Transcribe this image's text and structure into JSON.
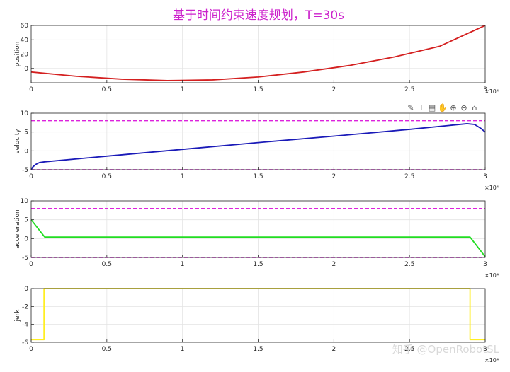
{
  "figure": {
    "title": "基于时间约束速度规划，T=30s",
    "title_color": "#cc22cc",
    "watermark": "知乎 @OpenRobotSL",
    "x_exponent": "×10⁴",
    "toolbar_icons": [
      "brush-icon",
      "data-tip-icon",
      "save-icon",
      "pan-hand-icon",
      "zoom-in-icon",
      "zoom-out-icon",
      "home-icon"
    ]
  },
  "chart_data": [
    {
      "type": "line",
      "title": "",
      "xlabel": "",
      "ylabel": "position",
      "xlim": [
        0,
        30000
      ],
      "ylim": [
        -20,
        60
      ],
      "xticks": [
        0,
        5000,
        10000,
        15000,
        20000,
        25000,
        30000
      ],
      "xtick_labels": [
        "0",
        "0.5",
        "1",
        "1.5",
        "2",
        "2.5",
        "3"
      ],
      "yticks": [
        0,
        20,
        40,
        60
      ],
      "ytick_labels": [
        "0",
        "20",
        "40",
        "60"
      ],
      "x_exponent_label": "×10⁴",
      "grid": true,
      "series": [
        {
          "color": "#d42020",
          "x": [
            0,
            3000,
            6000,
            9000,
            12000,
            15000,
            18000,
            21000,
            24000,
            27000,
            30000
          ],
          "y": [
            -5,
            -11,
            -15,
            -17,
            -16,
            -12,
            -5,
            4,
            16,
            31,
            60
          ]
        }
      ],
      "reference_lines": []
    },
    {
      "type": "line",
      "title": "",
      "xlabel": "",
      "ylabel": "velocity",
      "xlim": [
        0,
        30000
      ],
      "ylim": [
        -5,
        10
      ],
      "xticks": [
        0,
        5000,
        10000,
        15000,
        20000,
        25000,
        30000
      ],
      "xtick_labels": [
        "0",
        "0.5",
        "1",
        "1.5",
        "2",
        "2.5",
        "3"
      ],
      "yticks": [
        -5,
        0,
        5,
        10
      ],
      "ytick_labels": [
        "-5",
        "0",
        "5",
        "10"
      ],
      "x_exponent_label": "×10⁴",
      "grid": true,
      "series": [
        {
          "color": "#1a1ab8",
          "x": [
            0,
            100,
            300,
            550,
            900,
            5000,
            10000,
            15000,
            20000,
            25000,
            28800,
            29300,
            29700,
            30000
          ],
          "y": [
            -5,
            -4.3,
            -3.6,
            -3.1,
            -2.9,
            -1.4,
            0.4,
            2.2,
            3.9,
            5.7,
            7.2,
            7.0,
            6.0,
            5.0
          ]
        }
      ],
      "reference_lines": [
        {
          "y": 8,
          "color": "#dd22dd",
          "style": "dashed"
        },
        {
          "y": -5,
          "color": "#dd22dd",
          "style": "dashed"
        }
      ]
    },
    {
      "type": "line",
      "title": "",
      "xlabel": "",
      "ylabel": "acceleration",
      "xlim": [
        0,
        30000
      ],
      "ylim": [
        -5,
        10
      ],
      "xticks": [
        0,
        5000,
        10000,
        15000,
        20000,
        25000,
        30000
      ],
      "xtick_labels": [
        "0",
        "0.5",
        "1",
        "1.5",
        "2",
        "2.5",
        "3"
      ],
      "yticks": [
        -5,
        0,
        5,
        10
      ],
      "ytick_labels": [
        "-5",
        "0",
        "5",
        "10"
      ],
      "x_exponent_label": "×10⁴",
      "grid": true,
      "series": [
        {
          "color": "#22dd22",
          "x": [
            0,
            900,
            29000,
            30000
          ],
          "y": [
            5,
            0.4,
            0.4,
            -4.8
          ]
        }
      ],
      "reference_lines": [
        {
          "y": 8,
          "color": "#dd22dd",
          "style": "dashed"
        },
        {
          "y": -5,
          "color": "#dd22dd",
          "style": "dashed"
        }
      ]
    },
    {
      "type": "line",
      "title": "",
      "xlabel": "",
      "ylabel": "jerk",
      "xlim": [
        0,
        30000
      ],
      "ylim": [
        -6,
        0
      ],
      "xticks": [
        0,
        5000,
        10000,
        15000,
        20000,
        25000,
        30000
      ],
      "xtick_labels": [
        "0",
        "0.5",
        "1",
        "1.5",
        "2",
        "2.5",
        "3"
      ],
      "yticks": [
        -6,
        -4,
        -2,
        0
      ],
      "ytick_labels": [
        "-6",
        "-4",
        "-2",
        "0"
      ],
      "x_exponent_label": "×10⁴",
      "grid": true,
      "series": [
        {
          "color": "#ffee22",
          "x": [
            0,
            850,
            850,
            29000,
            29000,
            30000
          ],
          "y": [
            -5.7,
            -5.7,
            0,
            0,
            -5.7,
            -5.7
          ]
        }
      ],
      "reference_lines": []
    }
  ]
}
